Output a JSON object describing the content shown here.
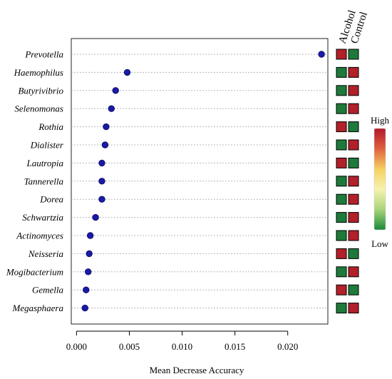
{
  "chart_data": {
    "type": "scatter",
    "title": "",
    "xlabel": "Mean Decrease Accuracy",
    "ylabel": "",
    "xlim": [
      -0.0005,
      0.0238
    ],
    "xticks": [
      "0.000",
      "0.005",
      "0.010",
      "0.015",
      "0.020"
    ],
    "xtick_values": [
      0,
      0.005,
      0.01,
      0.015,
      0.02
    ],
    "grid": "horizontal-dotted",
    "point_color": "#1a1aa8",
    "categories": [
      "Prevotella",
      "Haemophilus",
      "Butyrivibrio",
      "Selenomonas",
      "Rothia",
      "Dialister",
      "Lautropia",
      "Tannerella",
      "Dorea",
      "Schwartzia",
      "Actinomyces",
      "Neisseria",
      "Mogibacterium",
      "Gemella",
      "Megasphaera"
    ],
    "values": [
      0.0232,
      0.0048,
      0.0037,
      0.0033,
      0.0028,
      0.0027,
      0.0024,
      0.0024,
      0.0024,
      0.0018,
      0.0013,
      0.0012,
      0.0011,
      0.0009,
      0.0008
    ],
    "heatmap": {
      "columns": [
        "Alcohol",
        "Control"
      ],
      "levels": [
        [
          "high",
          "low"
        ],
        [
          "low",
          "high"
        ],
        [
          "low",
          "high"
        ],
        [
          "low",
          "high"
        ],
        [
          "high",
          "low"
        ],
        [
          "low",
          "high"
        ],
        [
          "high",
          "low"
        ],
        [
          "low",
          "high"
        ],
        [
          "low",
          "high"
        ],
        [
          "low",
          "high"
        ],
        [
          "low",
          "high"
        ],
        [
          "high",
          "low"
        ],
        [
          "low",
          "high"
        ],
        [
          "high",
          "low"
        ],
        [
          "low",
          "high"
        ]
      ],
      "colors": {
        "high": "#b2202a",
        "low": "#1e7a3a"
      }
    },
    "legend": {
      "placement": "right",
      "high_label": "High",
      "low_label": "Low",
      "gradient": [
        "#b2182b",
        "#e0603f",
        "#f5d060",
        "#f7f2b0",
        "#a8d47a",
        "#1a8a3a"
      ]
    }
  }
}
